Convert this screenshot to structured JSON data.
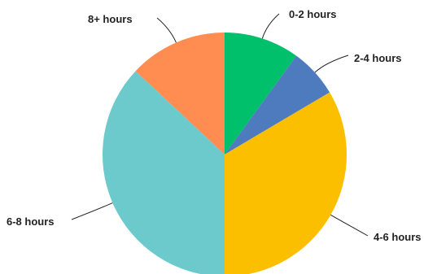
{
  "chart_data": {
    "type": "pie",
    "title": "",
    "slices": [
      {
        "label": "0-2 hours",
        "value": 10,
        "color": "#00c06c"
      },
      {
        "label": "2-4 hours",
        "value": 6.5,
        "color": "#4e7bbd"
      },
      {
        "label": "4-6 hours",
        "value": 33.5,
        "color": "#fbbf00"
      },
      {
        "label": "6-8 hours",
        "value": 37,
        "color": "#6ccacc"
      },
      {
        "label": "8+ hours",
        "value": 13,
        "color": "#ff8c50"
      }
    ],
    "start_angle_deg": 0,
    "direction": "clockwise",
    "legend": "none"
  }
}
